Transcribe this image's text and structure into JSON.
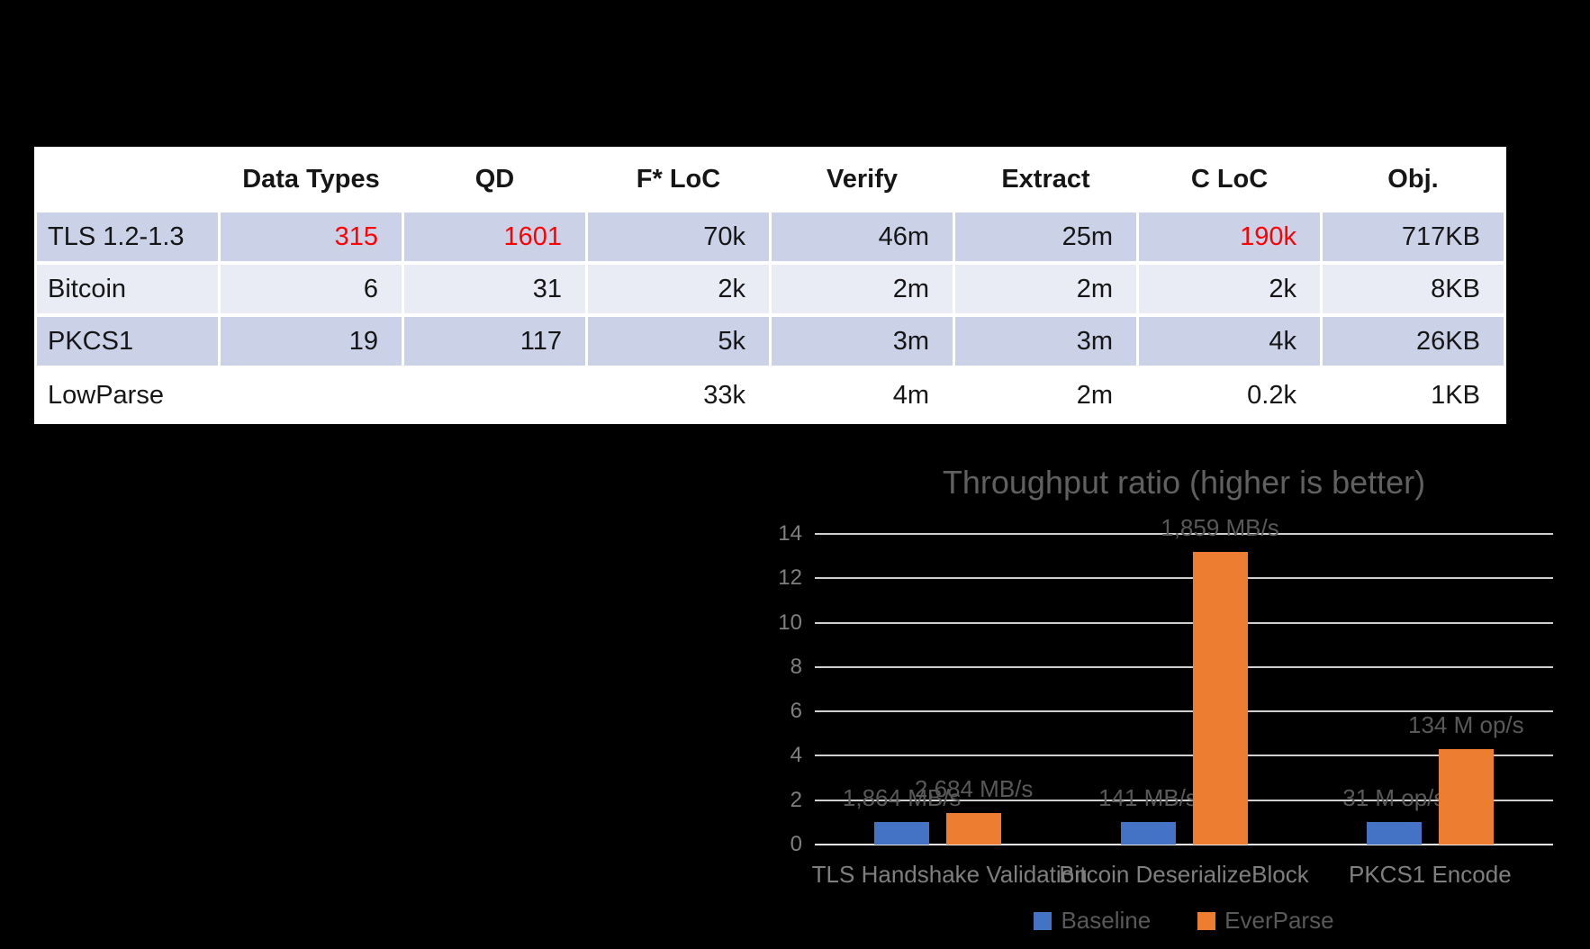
{
  "background_color": "#000000",
  "table": {
    "col_headers": [
      "Data Types",
      "QD",
      "F* LoC",
      "Verify",
      "Extract",
      "C LoC",
      "Obj."
    ],
    "highlight_color": "#ff0000",
    "rows": [
      {
        "label": "TLS 1.2-1.3",
        "data_types": "315",
        "qd": "1601",
        "fstar_loc": "70k",
        "verify": "46m",
        "extract": "25m",
        "c_loc": "190k",
        "obj": "717KB"
      },
      {
        "label": "Bitcoin",
        "data_types": "6",
        "qd": "31",
        "fstar_loc": "2k",
        "verify": "2m",
        "extract": "2m",
        "c_loc": "2k",
        "obj": "8KB"
      },
      {
        "label": "PKCS1",
        "data_types": "19",
        "qd": "117",
        "fstar_loc": "5k",
        "verify": "3m",
        "extract": "3m",
        "c_loc": "4k",
        "obj": "26KB"
      },
      {
        "label": "LowParse",
        "data_types": "",
        "qd": "",
        "fstar_loc": "33k",
        "verify": "4m",
        "extract": "2m",
        "c_loc": "0.2k",
        "obj": "1KB"
      }
    ]
  },
  "chart_data": {
    "type": "bar",
    "title": "Throughput ratio (higher is better)",
    "categories": [
      "TLS Handshake Validation",
      "Bitcoin DeserializeBlock",
      "PKCS1 Encode"
    ],
    "series": [
      {
        "name": "Baseline",
        "color": "#4472C4",
        "values": [
          1.0,
          1.0,
          1.0
        ],
        "point_labels": [
          "1,864 MB/s",
          "141 MB/s",
          "31 M op/s"
        ]
      },
      {
        "name": "EverParse",
        "color": "#ED7D31",
        "values": [
          1.44,
          13.18,
          4.32
        ],
        "point_labels": [
          "2,684 MB/s",
          "1,859 MB/s",
          "134 M op/s"
        ]
      }
    ],
    "xlabel": "",
    "ylabel": "",
    "ylim": [
      0,
      14
    ],
    "yticks": [
      0,
      2,
      4,
      6,
      8,
      10,
      12,
      14
    ],
    "grid": true,
    "legend_position": "bottom",
    "colors": {
      "title_text": "#606060",
      "axis_text": "#7f7f7f",
      "data_label_text": "#595959",
      "gridline": "#cfcfcf",
      "axis_line": "#ececec"
    }
  }
}
